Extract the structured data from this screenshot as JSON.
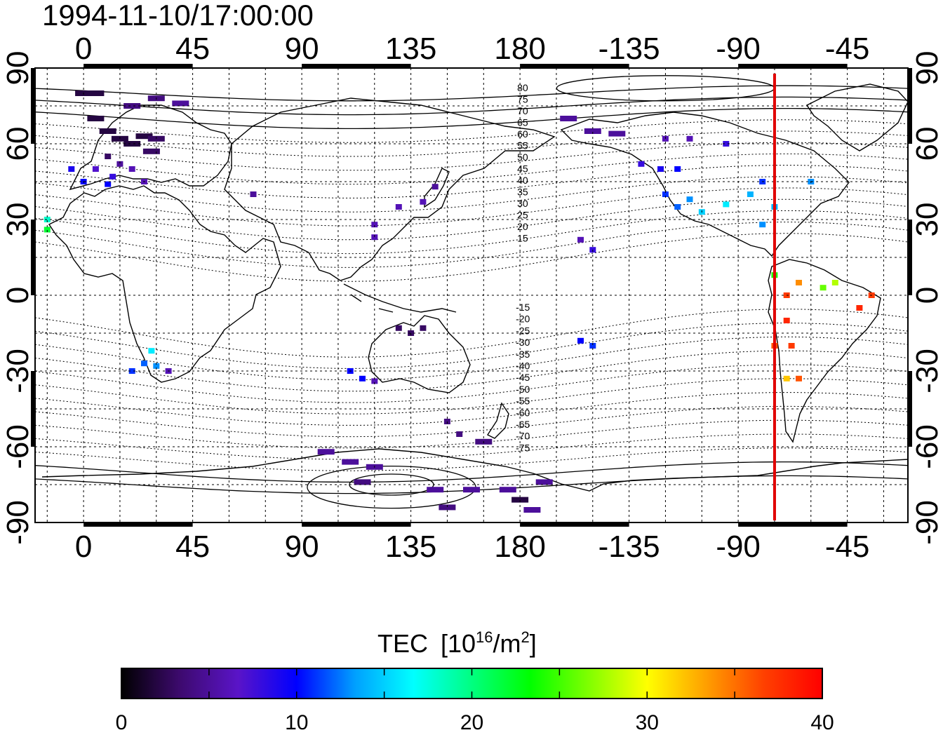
{
  "title": "1994-11-10/17:00:00",
  "colorbar": {
    "label": "TEC",
    "unit_prefix": "[10",
    "unit_exp": "16",
    "unit_mid": "/m",
    "unit_exp2": "2",
    "unit_suffix": "]",
    "min": 0,
    "max": 40,
    "ticks": [
      "0",
      "10",
      "20",
      "30",
      "40"
    ],
    "colors": [
      "#000000",
      "#3d0a6e",
      "#5a14c8",
      "#0000ff",
      "#00a0ff",
      "#00ffff",
      "#00ff80",
      "#00ff00",
      "#80ff00",
      "#ffff00",
      "#ffa000",
      "#ff4000",
      "#ff0000"
    ]
  },
  "map": {
    "lon_labels": [
      "0",
      "45",
      "90",
      "135",
      "180",
      "-135",
      "-90",
      "-45"
    ],
    "lat_labels": [
      "90",
      "60",
      "30",
      "0",
      "-30",
      "-60",
      "-90"
    ],
    "terminator_lon": -75,
    "terminator_color": "#e00000",
    "contour_labels_north": [
      "80",
      "75",
      "70",
      "65",
      "60",
      "55",
      "50",
      "45",
      "40",
      "35",
      "30",
      "25",
      "20",
      "15"
    ],
    "contour_labels_south": [
      "-15",
      "-20",
      "-25",
      "-30",
      "-35",
      "-40",
      "-45",
      "-50",
      "-55",
      "-60",
      "-65",
      "-70",
      "-75"
    ]
  },
  "chart_data": {
    "type": "heatmap",
    "title": "1994-11-10/17:00:00",
    "xlabel": "",
    "ylabel": "",
    "xlim": [
      -20,
      340
    ],
    "ylim": [
      -90,
      90
    ],
    "value_range": [
      0,
      40
    ],
    "points": [
      {
        "lon": 0,
        "lat": 80,
        "tec": 2
      },
      {
        "lon": 5,
        "lat": 80,
        "tec": 2
      },
      {
        "lon": 20,
        "lat": 75,
        "tec": 4
      },
      {
        "lon": 30,
        "lat": 78,
        "tec": 4
      },
      {
        "lon": 40,
        "lat": 76,
        "tec": 5
      },
      {
        "lon": 5,
        "lat": 70,
        "tec": 2
      },
      {
        "lon": 10,
        "lat": 65,
        "tec": 2
      },
      {
        "lon": 15,
        "lat": 62,
        "tec": 2
      },
      {
        "lon": 20,
        "lat": 60,
        "tec": 2
      },
      {
        "lon": 25,
        "lat": 63,
        "tec": 2
      },
      {
        "lon": 30,
        "lat": 62,
        "tec": 3
      },
      {
        "lon": 28,
        "lat": 57,
        "tec": 3
      },
      {
        "lon": 10,
        "lat": 55,
        "tec": 3
      },
      {
        "lon": 15,
        "lat": 52,
        "tec": 5
      },
      {
        "lon": 20,
        "lat": 50,
        "tec": 6
      },
      {
        "lon": 5,
        "lat": 50,
        "tec": 7
      },
      {
        "lon": 12,
        "lat": 47,
        "tec": 8
      },
      {
        "lon": -5,
        "lat": 50,
        "tec": 9
      },
      {
        "lon": 0,
        "lat": 45,
        "tec": 10
      },
      {
        "lon": 10,
        "lat": 44,
        "tec": 10
      },
      {
        "lon": 25,
        "lat": 45,
        "tec": 6
      },
      {
        "lon": 70,
        "lat": 40,
        "tec": 5
      },
      {
        "lon": -15,
        "lat": 30,
        "tec": 18
      },
      {
        "lon": -15,
        "lat": 26,
        "tec": 22
      },
      {
        "lon": 28,
        "lat": -22,
        "tec": 16
      },
      {
        "lon": 25,
        "lat": -27,
        "tec": 12
      },
      {
        "lon": 30,
        "lat": -28,
        "tec": 13
      },
      {
        "lon": 20,
        "lat": -30,
        "tec": 11
      },
      {
        "lon": 35,
        "lat": -30,
        "tec": 6
      },
      {
        "lon": 130,
        "lat": 35,
        "tec": 6
      },
      {
        "lon": 140,
        "lat": 37,
        "tec": 6
      },
      {
        "lon": 145,
        "lat": 43,
        "tec": 5
      },
      {
        "lon": 120,
        "lat": 28,
        "tec": 6
      },
      {
        "lon": 120,
        "lat": 23,
        "tec": 6
      },
      {
        "lon": 130,
        "lat": -13,
        "tec": 3
      },
      {
        "lon": 135,
        "lat": -15,
        "tec": 3
      },
      {
        "lon": 140,
        "lat": -13,
        "tec": 3
      },
      {
        "lon": 110,
        "lat": -30,
        "tec": 10
      },
      {
        "lon": 115,
        "lat": -33,
        "tec": 10
      },
      {
        "lon": 120,
        "lat": -34,
        "tec": 6
      },
      {
        "lon": 150,
        "lat": -50,
        "tec": 4
      },
      {
        "lon": 155,
        "lat": -55,
        "tec": 4
      },
      {
        "lon": 165,
        "lat": -58,
        "tec": 4
      },
      {
        "lon": 100,
        "lat": -62,
        "tec": 5
      },
      {
        "lon": 110,
        "lat": -66,
        "tec": 5
      },
      {
        "lon": 120,
        "lat": -68,
        "tec": 5
      },
      {
        "lon": 115,
        "lat": -74,
        "tec": 4
      },
      {
        "lon": 145,
        "lat": -77,
        "tec": 5
      },
      {
        "lon": 160,
        "lat": -77,
        "tec": 5
      },
      {
        "lon": 175,
        "lat": -77,
        "tec": 5
      },
      {
        "lon": 190,
        "lat": -74,
        "tec": 5
      },
      {
        "lon": 180,
        "lat": -81,
        "tec": 2
      },
      {
        "lon": 150,
        "lat": -84,
        "tec": 4
      },
      {
        "lon": 185,
        "lat": -85,
        "tec": 5
      },
      {
        "lon": 200,
        "lat": 70,
        "tec": 5
      },
      {
        "lon": 210,
        "lat": 65,
        "tec": 5
      },
      {
        "lon": 220,
        "lat": 64,
        "tec": 5
      },
      {
        "lon": 240,
        "lat": 62,
        "tec": 6
      },
      {
        "lon": 250,
        "lat": 62,
        "tec": 6
      },
      {
        "lon": 265,
        "lat": 60,
        "tec": 8
      },
      {
        "lon": 230,
        "lat": 52,
        "tec": 8
      },
      {
        "lon": 238,
        "lat": 50,
        "tec": 9
      },
      {
        "lon": 245,
        "lat": 50,
        "tec": 10
      },
      {
        "lon": 240,
        "lat": 40,
        "tec": 11
      },
      {
        "lon": 245,
        "lat": 35,
        "tec": 12
      },
      {
        "lon": 250,
        "lat": 38,
        "tec": 13
      },
      {
        "lon": 255,
        "lat": 33,
        "tec": 15
      },
      {
        "lon": 265,
        "lat": 36,
        "tec": 16
      },
      {
        "lon": 275,
        "lat": 40,
        "tec": 14
      },
      {
        "lon": 280,
        "lat": 45,
        "tec": 11
      },
      {
        "lon": 285,
        "lat": 35,
        "tec": 14
      },
      {
        "lon": 300,
        "lat": 45,
        "tec": 13
      },
      {
        "lon": 280,
        "lat": 28,
        "tec": 13
      },
      {
        "lon": 285,
        "lat": 8,
        "tec": 24
      },
      {
        "lon": 290,
        "lat": 0,
        "tec": 37
      },
      {
        "lon": 295,
        "lat": 5,
        "tec": 34
      },
      {
        "lon": 305,
        "lat": 3,
        "tec": 26
      },
      {
        "lon": 310,
        "lat": 5,
        "tec": 28
      },
      {
        "lon": 320,
        "lat": -5,
        "tec": 38
      },
      {
        "lon": 325,
        "lat": 0,
        "tec": 37
      },
      {
        "lon": 290,
        "lat": -10,
        "tec": 38
      },
      {
        "lon": 285,
        "lat": -20,
        "tec": 36
      },
      {
        "lon": 292,
        "lat": -20,
        "tec": 37
      },
      {
        "lon": 290,
        "lat": -33,
        "tec": 32
      },
      {
        "lon": 295,
        "lat": -33,
        "tec": 36
      },
      {
        "lon": 205,
        "lat": 22,
        "tec": 6
      },
      {
        "lon": 210,
        "lat": 18,
        "tec": 8
      },
      {
        "lon": 205,
        "lat": -18,
        "tec": 10
      },
      {
        "lon": 210,
        "lat": -20,
        "tec": 11
      }
    ]
  }
}
